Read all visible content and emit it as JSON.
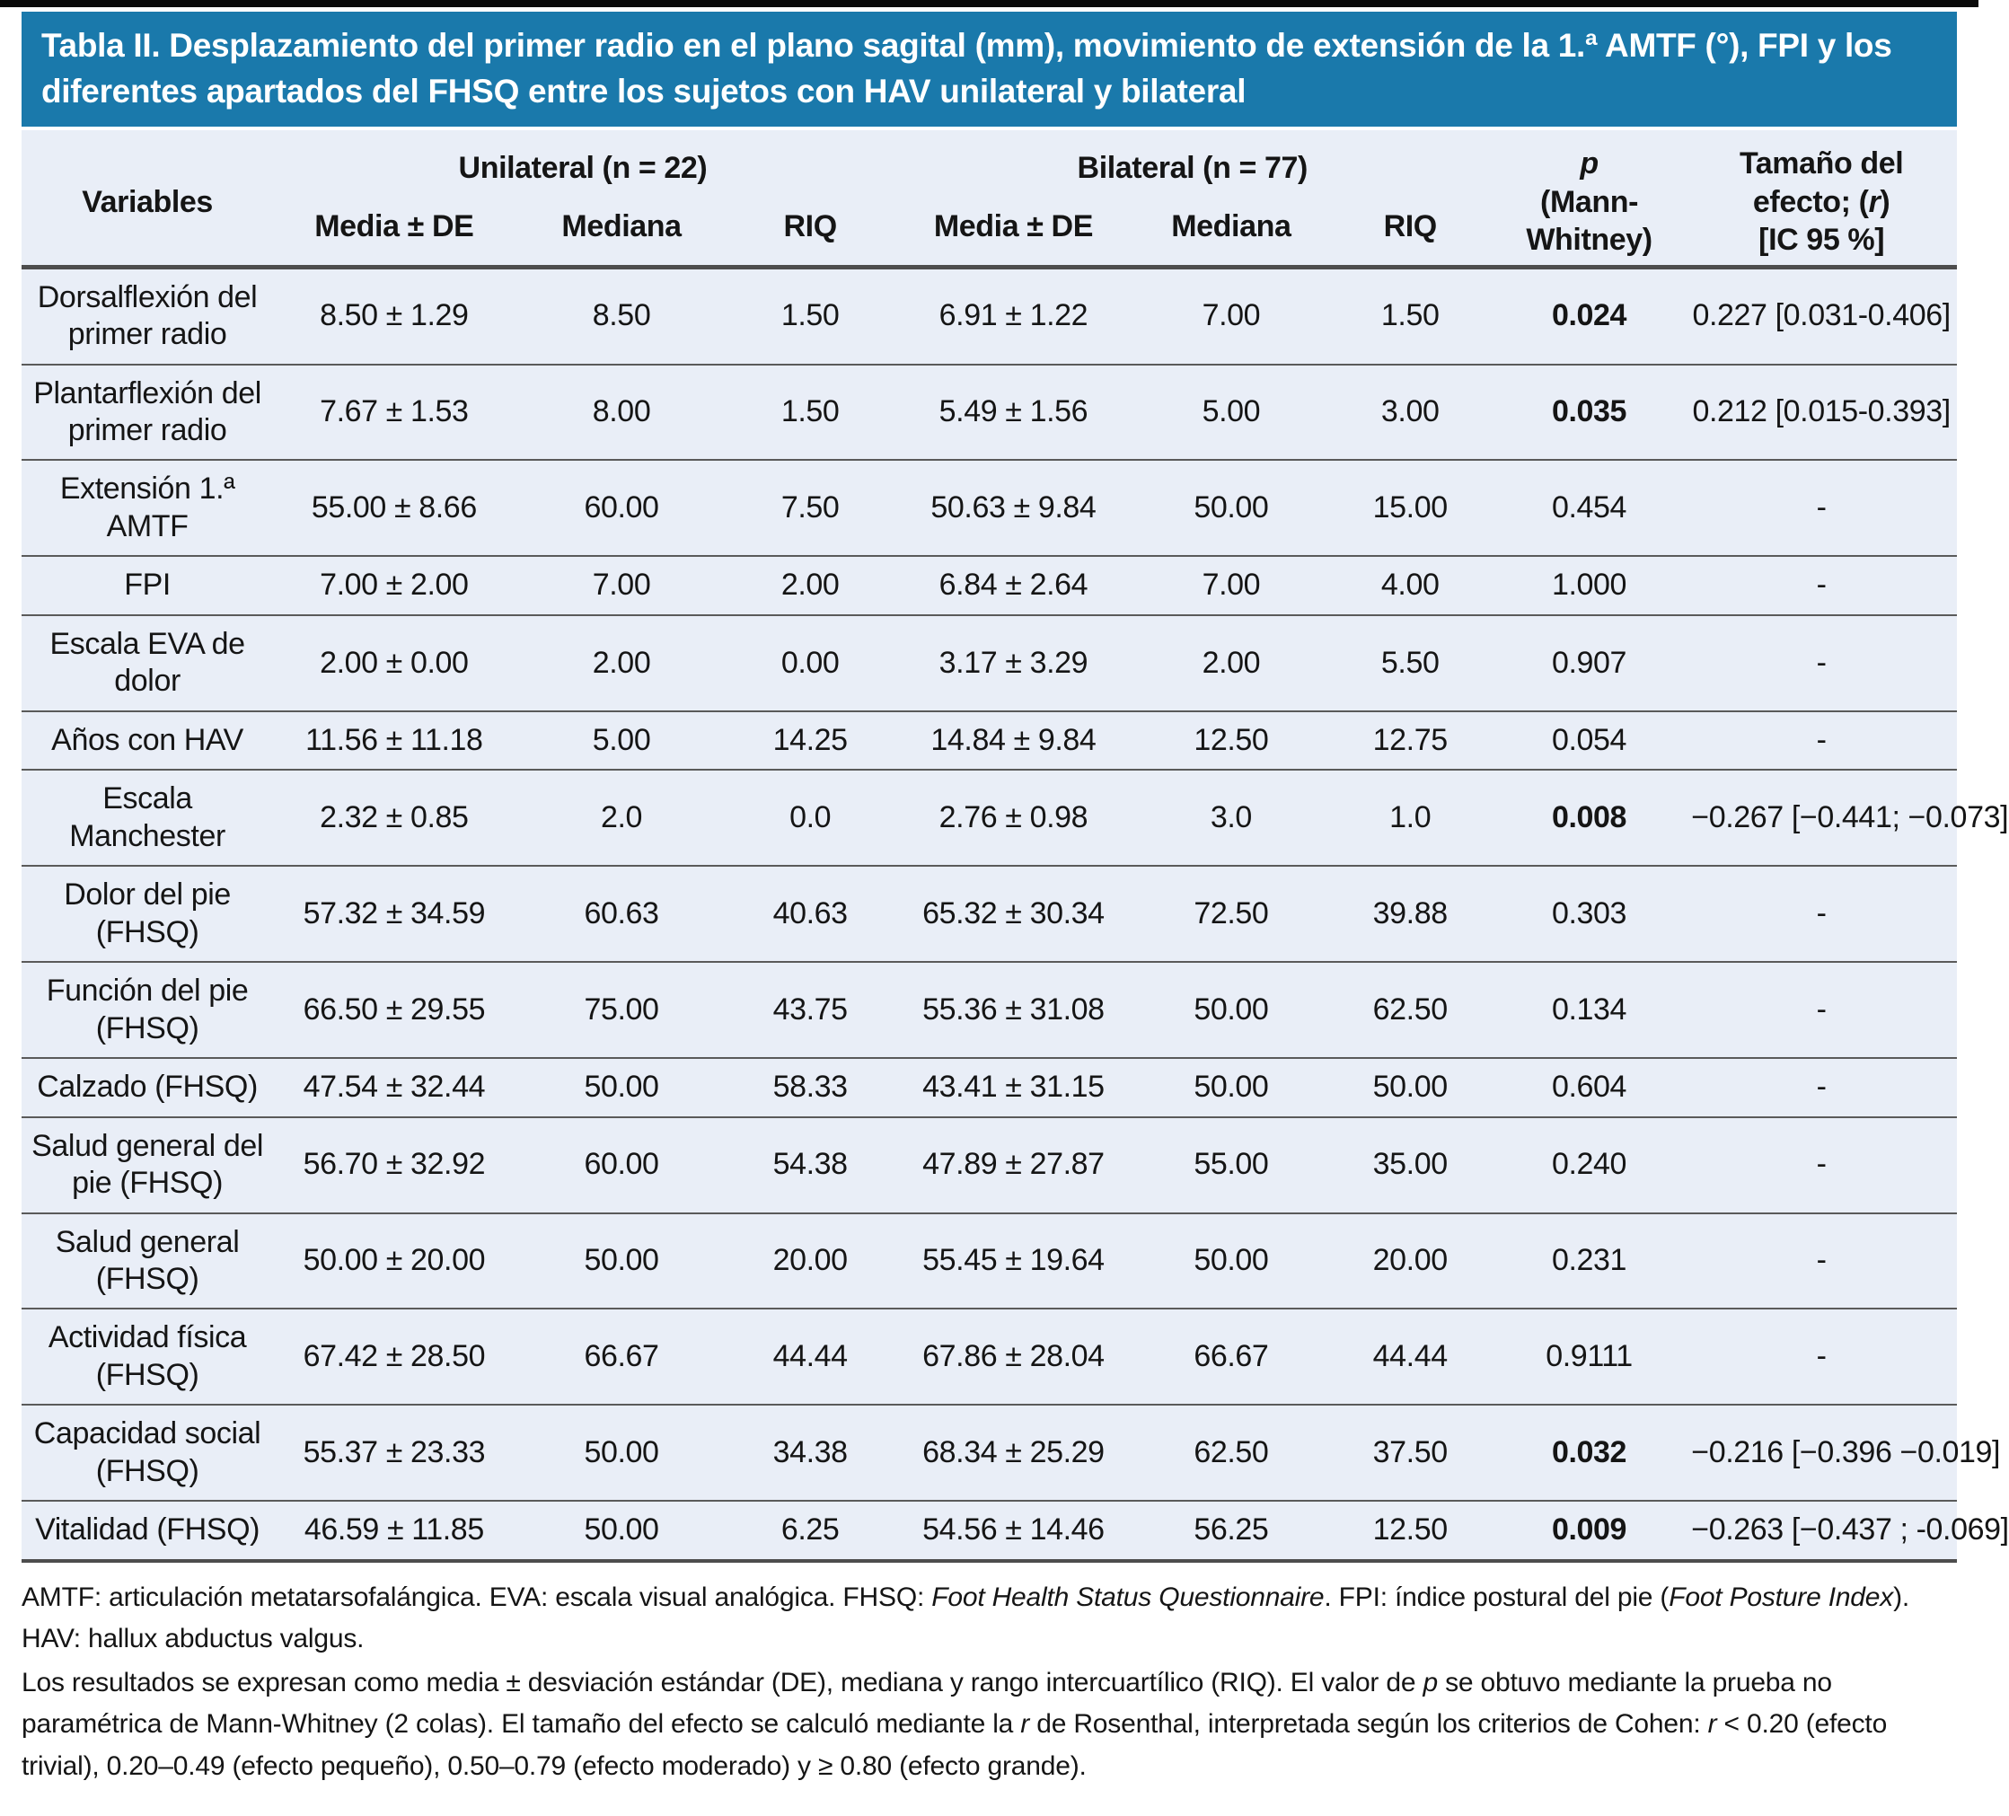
{
  "title": "Tabla II. Desplazamiento del primer radio en el plano sagital (mm), movimiento de extensión de la 1.ª AMTF (°), FPI y los diferentes apartados del FHSQ entre los sujetos con HAV unilateral y bilateral",
  "colors": {
    "title_bar_bg": "#1a79ab",
    "title_text": "#ffffff",
    "table_body_bg": "#e9eef7",
    "rule_dark": "#4d4d4d",
    "top_edge": "#0a0a0a"
  },
  "header": {
    "variables": "Variables",
    "group_unilateral": "Unilateral (n = 22)",
    "group_bilateral": "Bilateral (n = 77)",
    "sub_media": "Media ± DE",
    "sub_mediana": "Mediana",
    "sub_riq": "RIQ",
    "p_line1": "p",
    "p_line2": "(Mann-Whitney)",
    "effect_pre": "Tamaño del efecto; (",
    "effect_italic": "r",
    "effect_post": ")",
    "effect_line2": "[IC 95 %]"
  },
  "table": {
    "rows": [
      {
        "variable": "Dorsalflexión del primer radio",
        "uni": {
          "media_de": "8.50 ± 1.29",
          "mediana": "8.50",
          "riq": "1.50"
        },
        "bil": {
          "media_de": "6.91 ± 1.22",
          "mediana": "7.00",
          "riq": "1.50"
        },
        "p": "0.024",
        "p_bold": true,
        "effect": "0.227 [0.031-0.406]"
      },
      {
        "variable": "Plantarflexión del primer radio",
        "uni": {
          "media_de": "7.67 ± 1.53",
          "mediana": "8.00",
          "riq": "1.50"
        },
        "bil": {
          "media_de": "5.49 ± 1.56",
          "mediana": "5.00",
          "riq": "3.00"
        },
        "p": "0.035",
        "p_bold": true,
        "effect": "0.212 [0.015-0.393]"
      },
      {
        "variable": "Extensión 1.ª AMTF",
        "uni": {
          "media_de": "55.00 ± 8.66",
          "mediana": "60.00",
          "riq": "7.50"
        },
        "bil": {
          "media_de": "50.63 ± 9.84",
          "mediana": "50.00",
          "riq": "15.00"
        },
        "p": "0.454",
        "p_bold": false,
        "effect": "-"
      },
      {
        "variable": "FPI",
        "uni": {
          "media_de": "7.00 ± 2.00",
          "mediana": "7.00",
          "riq": "2.00"
        },
        "bil": {
          "media_de": "6.84 ± 2.64",
          "mediana": "7.00",
          "riq": "4.00"
        },
        "p": "1.000",
        "p_bold": false,
        "effect": "-"
      },
      {
        "variable": "Escala EVA de dolor",
        "uni": {
          "media_de": "2.00 ± 0.00",
          "mediana": "2.00",
          "riq": "0.00"
        },
        "bil": {
          "media_de": "3.17 ± 3.29",
          "mediana": "2.00",
          "riq": "5.50"
        },
        "p": "0.907",
        "p_bold": false,
        "effect": "-"
      },
      {
        "variable": "Años con HAV",
        "uni": {
          "media_de": "11.56 ± 11.18",
          "mediana": "5.00",
          "riq": "14.25"
        },
        "bil": {
          "media_de": "14.84 ± 9.84",
          "mediana": "12.50",
          "riq": "12.75"
        },
        "p": "0.054",
        "p_bold": false,
        "effect": "-"
      },
      {
        "variable": "Escala Manchester",
        "uni": {
          "media_de": "2.32 ± 0.85",
          "mediana": "2.0",
          "riq": "0.0"
        },
        "bil": {
          "media_de": "2.76 ± 0.98",
          "mediana": "3.0",
          "riq": "1.0"
        },
        "p": "0.008",
        "p_bold": true,
        "effect": "−0.267 [−0.441; −0.073]"
      },
      {
        "variable": "Dolor del pie (FHSQ)",
        "uni": {
          "media_de": "57.32 ± 34.59",
          "mediana": "60.63",
          "riq": "40.63"
        },
        "bil": {
          "media_de": "65.32 ± 30.34",
          "mediana": "72.50",
          "riq": "39.88"
        },
        "p": "0.303",
        "p_bold": false,
        "effect": "-"
      },
      {
        "variable": "Función del pie (FHSQ)",
        "uni": {
          "media_de": "66.50 ± 29.55",
          "mediana": "75.00",
          "riq": "43.75"
        },
        "bil": {
          "media_de": "55.36 ± 31.08",
          "mediana": "50.00",
          "riq": "62.50"
        },
        "p": "0.134",
        "p_bold": false,
        "effect": "-"
      },
      {
        "variable": "Calzado (FHSQ)",
        "uni": {
          "media_de": "47.54 ± 32.44",
          "mediana": "50.00",
          "riq": "58.33"
        },
        "bil": {
          "media_de": "43.41 ± 31.15",
          "mediana": "50.00",
          "riq": "50.00"
        },
        "p": "0.604",
        "p_bold": false,
        "effect": "-"
      },
      {
        "variable": "Salud general del pie (FHSQ)",
        "uni": {
          "media_de": "56.70 ± 32.92",
          "mediana": "60.00",
          "riq": "54.38"
        },
        "bil": {
          "media_de": "47.89 ± 27.87",
          "mediana": "55.00",
          "riq": "35.00"
        },
        "p": "0.240",
        "p_bold": false,
        "effect": "-"
      },
      {
        "variable": "Salud general (FHSQ)",
        "uni": {
          "media_de": "50.00 ± 20.00",
          "mediana": "50.00",
          "riq": "20.00"
        },
        "bil": {
          "media_de": "55.45 ± 19.64",
          "mediana": "50.00",
          "riq": "20.00"
        },
        "p": "0.231",
        "p_bold": false,
        "effect": "-"
      },
      {
        "variable": "Actividad física (FHSQ)",
        "uni": {
          "media_de": "67.42 ± 28.50",
          "mediana": "66.67",
          "riq": "44.44"
        },
        "bil": {
          "media_de": "67.86 ± 28.04",
          "mediana": "66.67",
          "riq": "44.44"
        },
        "p": "0.9111",
        "p_bold": false,
        "effect": "-"
      },
      {
        "variable": "Capacidad social (FHSQ)",
        "uni": {
          "media_de": "55.37 ± 23.33",
          "mediana": "50.00",
          "riq": "34.38"
        },
        "bil": {
          "media_de": "68.34 ± 25.29",
          "mediana": "62.50",
          "riq": "37.50"
        },
        "p": "0.032",
        "p_bold": true,
        "effect": "−0.216 [−0.396 −0.019]"
      },
      {
        "variable": "Vitalidad (FHSQ)",
        "uni": {
          "media_de": "46.59 ± 11.85",
          "mediana": "50.00",
          "riq": "6.25"
        },
        "bil": {
          "media_de": "54.56 ± 14.46",
          "mediana": "56.25",
          "riq": "12.50"
        },
        "p": "0.009",
        "p_bold": true,
        "effect": "−0.263 [−0.437 ; -0.069]"
      }
    ]
  },
  "footnotes": [
    {
      "segments": [
        {
          "t": "AMTF: articulación metatarsofalángica. EVA: escala visual analógica. FHSQ: "
        },
        {
          "t": "Foot Health Status Questionnaire",
          "i": true
        },
        {
          "t": ". FPI: índice postural del pie ("
        },
        {
          "t": "Foot Posture Index",
          "i": true
        },
        {
          "t": "). HAV: hallux abductus valgus."
        }
      ]
    },
    {
      "segments": [
        {
          "t": "Los resultados se expresan como media ± desviación estándar (DE), mediana y rango intercuartílico (RIQ). El valor de "
        },
        {
          "t": "p",
          "i": true
        },
        {
          "t": " se obtuvo mediante la prueba no paramétrica de Mann-Whitney (2 colas). El tamaño del efecto se calculó mediante la "
        },
        {
          "t": "r",
          "i": true
        },
        {
          "t": " de Rosenthal, interpretada según los criterios de Cohen: "
        },
        {
          "t": "r",
          "i": true
        },
        {
          "t": " < 0.20 (efecto trivial), 0.20–0.49 (efecto pequeño), 0.50–0.79 (efecto moderado) y ≥ 0.80 (efecto grande)."
        }
      ]
    }
  ]
}
